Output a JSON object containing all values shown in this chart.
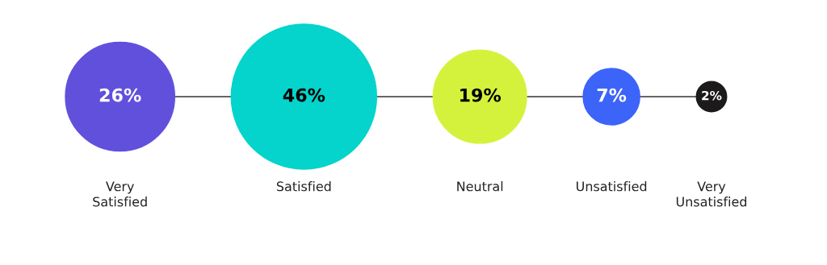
{
  "chart_data": {
    "type": "other",
    "categories": [
      "Very\nSatisfied",
      "Satisfied",
      "Neutral",
      "Unsatisfied",
      "Very\nUnsatisfied"
    ],
    "values": [
      26,
      46,
      19,
      7,
      2
    ],
    "colors": [
      "#6150dc",
      "#04d4cc",
      "#d4f23c",
      "#3d64f8",
      "#1c1a1a"
    ],
    "value_labels": [
      "26%",
      "46%",
      "19%",
      "7%",
      "2%"
    ]
  }
}
